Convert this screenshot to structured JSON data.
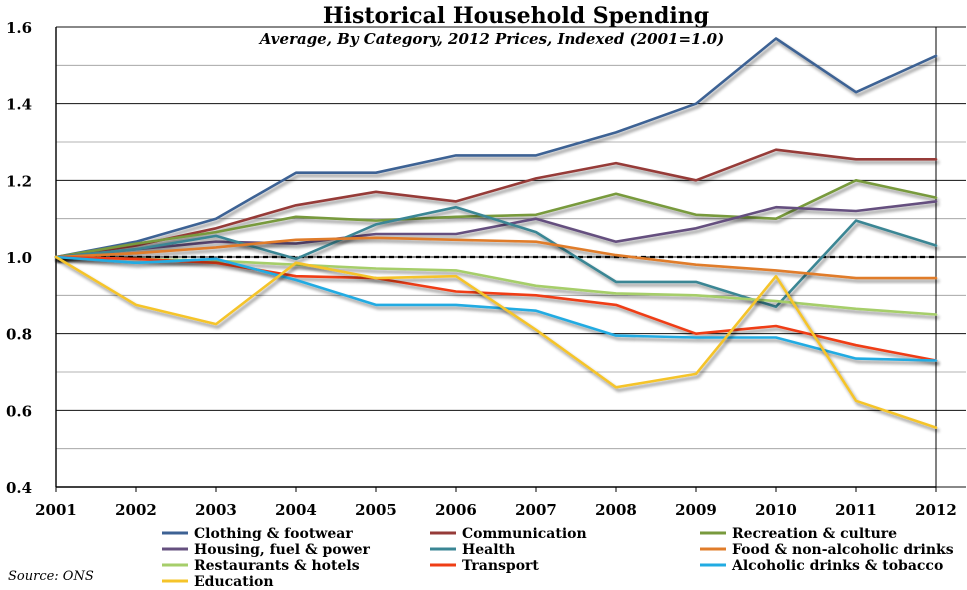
{
  "chart_data": {
    "type": "line",
    "title": "Historical Household Spending",
    "subtitle": "Average, By Category, 2012 Prices, Indexed (2001=1.0)",
    "source": "Source: ONS",
    "x": [
      "2001",
      "2002",
      "2003",
      "2004",
      "2005",
      "2006",
      "2007",
      "2008",
      "2009",
      "2010",
      "2011",
      "2012"
    ],
    "ylim": [
      0.4,
      1.6
    ],
    "yticks": [
      "0.4",
      "0.6",
      "0.8",
      "1.0",
      "1.2",
      "1.4",
      "1.6"
    ],
    "yticks_values": [
      0.4,
      0.6,
      0.8,
      1.0,
      1.2,
      1.4,
      1.6
    ],
    "reference_line": 1.0,
    "grid": "horizontal",
    "legend_position": "bottom",
    "series": [
      {
        "name": "Clothing & footwear",
        "color": "#3d6294",
        "values": [
          1.0,
          1.04,
          1.1,
          1.22,
          1.22,
          1.265,
          1.265,
          1.325,
          1.4,
          1.57,
          1.43,
          1.525
        ]
      },
      {
        "name": "Communication",
        "color": "#963b38",
        "values": [
          1.0,
          1.03,
          1.075,
          1.135,
          1.17,
          1.145,
          1.205,
          1.245,
          1.2,
          1.28,
          1.255,
          1.255
        ]
      },
      {
        "name": "Recreation & culture",
        "color": "#789a3d",
        "values": [
          1.0,
          1.035,
          1.065,
          1.105,
          1.095,
          1.105,
          1.11,
          1.165,
          1.11,
          1.1,
          1.2,
          1.155
        ]
      },
      {
        "name": "Housing, fuel & power",
        "color": "#65507f",
        "values": [
          1.0,
          1.02,
          1.04,
          1.035,
          1.06,
          1.06,
          1.1,
          1.04,
          1.075,
          1.13,
          1.12,
          1.145
        ]
      },
      {
        "name": "Health",
        "color": "#3a8694",
        "values": [
          1.0,
          1.02,
          1.055,
          0.995,
          1.085,
          1.13,
          1.065,
          0.935,
          0.935,
          0.87,
          1.095,
          1.03
        ]
      },
      {
        "name": "Food & non-alcoholic drinks",
        "color": "#e07c2a",
        "values": [
          1.0,
          1.01,
          1.025,
          1.045,
          1.05,
          1.045,
          1.04,
          1.005,
          0.98,
          0.965,
          0.945,
          0.945
        ]
      },
      {
        "name": "Restaurants & hotels",
        "color": "#a6ce6a",
        "values": [
          1.0,
          0.995,
          0.99,
          0.98,
          0.97,
          0.965,
          0.925,
          0.905,
          0.9,
          0.885,
          0.865,
          0.85
        ]
      },
      {
        "name": "Transport",
        "color": "#ef3e15",
        "values": [
          1.0,
          0.995,
          0.985,
          0.95,
          0.945,
          0.91,
          0.9,
          0.875,
          0.8,
          0.82,
          0.77,
          0.73
        ]
      },
      {
        "name": "Alcoholic drinks & tobacco",
        "color": "#21abe2",
        "values": [
          1.0,
          0.985,
          0.995,
          0.94,
          0.875,
          0.875,
          0.86,
          0.795,
          0.79,
          0.79,
          0.735,
          0.73
        ]
      },
      {
        "name": "Education",
        "color": "#f5c42a",
        "values": [
          1.0,
          0.875,
          0.825,
          0.985,
          0.945,
          0.95,
          0.81,
          0.66,
          0.695,
          0.95,
          0.625,
          0.555
        ]
      }
    ]
  }
}
